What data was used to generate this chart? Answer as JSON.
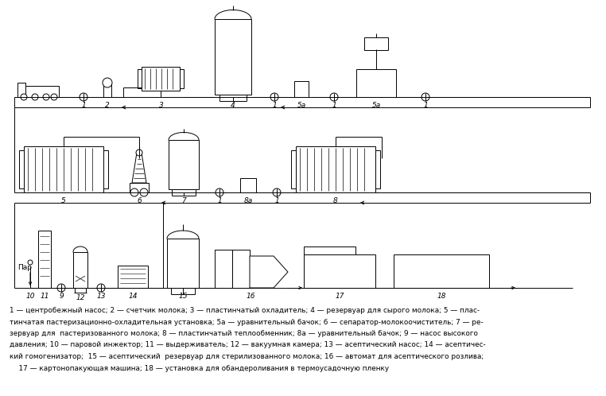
{
  "bg_color": "#ffffff",
  "fig_width": 7.62,
  "fig_height": 4.98,
  "caption_lines": [
    "1 — центробежный насос; 2 — счетчик молока; 3 — пластинчатый охладитель; 4 — резервуар для сырого молока; 5 — плас-",
    "тинчатая пастеризационно-охладительная установка; 5а — уравнительный бачок; 6 — сепаратор-молокоочиститель; 7 — ре-",
    "зервуар для  пастеризованного молока; 8 — пластинчатый теплообменник; 8а — уравнительный бачок; 9 — насос высокого",
    "давления; 10 — паровой инжектор; 11 — выдерживатель; 12 — вакуумная камера; 13 — асептический насос; 14 — асептичес-",
    "кий гомогенизатор;  15 — асептический  резервуар для стерилизованного молока; 16 — автомат для асептического розлива;",
    "    17 — картонопакующая машина; 18 — установка для обандероливания в термоусадочную пленку"
  ]
}
